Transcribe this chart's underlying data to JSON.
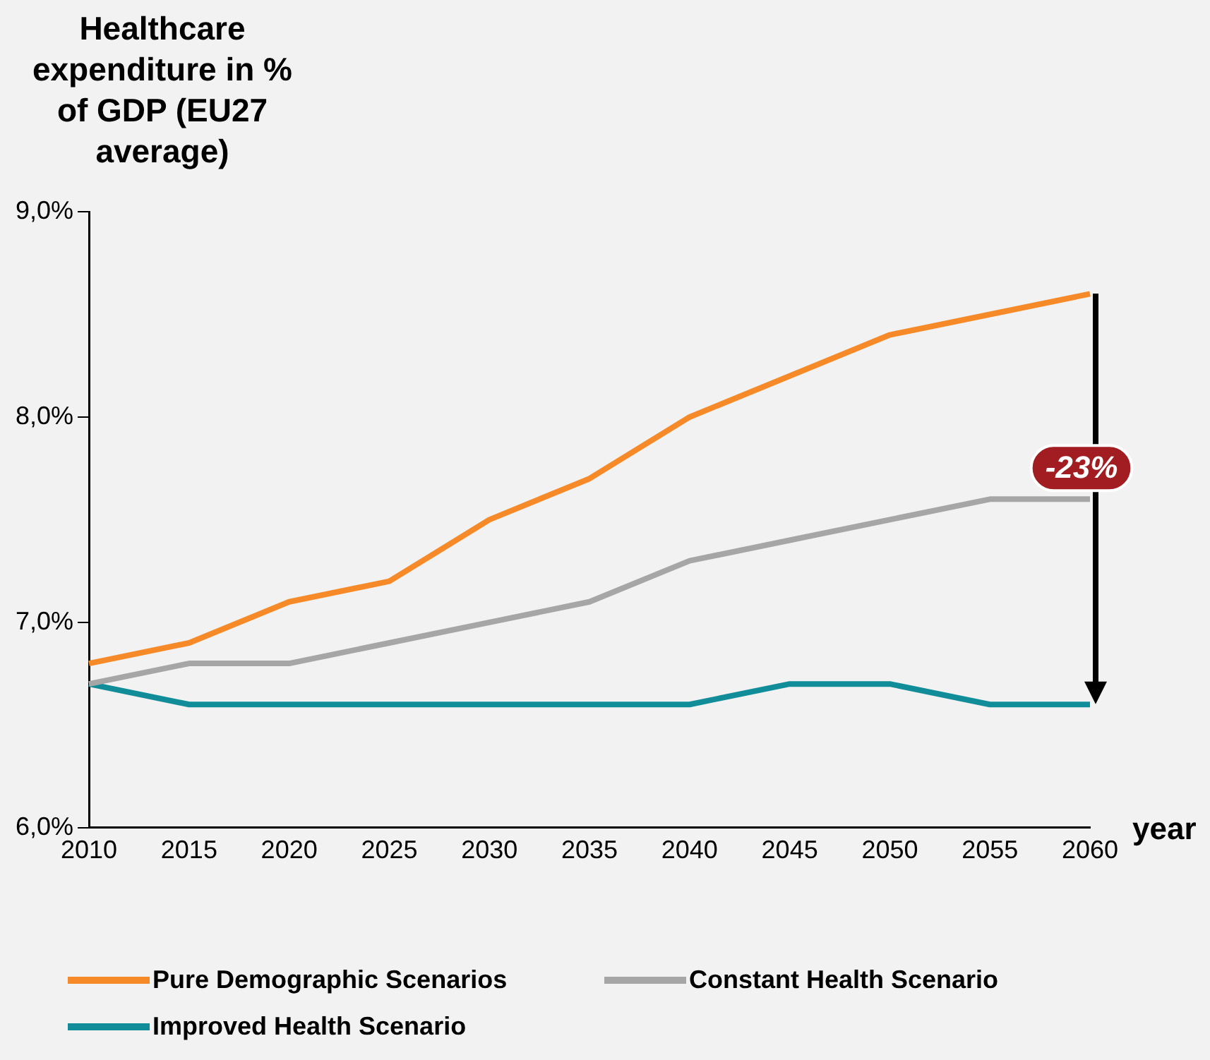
{
  "chart_data": {
    "type": "line",
    "ylabel": "Healthcare expenditure in % of GDP (EU27 average)",
    "xlabel": "year",
    "categories": [
      "2010",
      "2015",
      "2020",
      "2025",
      "2030",
      "2035",
      "2040",
      "2045",
      "2050",
      "2055",
      "2060"
    ],
    "series": [
      {
        "name": "Pure Demographic Scenarios",
        "color": "#f78a28",
        "values": [
          6.8,
          6.9,
          7.1,
          7.2,
          7.5,
          7.7,
          8.0,
          8.2,
          8.4,
          8.5,
          8.6
        ]
      },
      {
        "name": "Constant Health Scenario",
        "color": "#a6a6a6",
        "values": [
          6.7,
          6.8,
          6.8,
          6.9,
          7.0,
          7.1,
          7.3,
          7.4,
          7.5,
          7.6,
          7.6
        ]
      },
      {
        "name": "Improved Health Scenario",
        "color": "#108d99",
        "values": [
          6.7,
          6.6,
          6.6,
          6.6,
          6.6,
          6.6,
          6.6,
          6.7,
          6.7,
          6.6,
          6.6
        ]
      }
    ],
    "ylim": [
      6,
      9
    ],
    "yticks": [
      {
        "value": 6,
        "label": "6,0%"
      },
      {
        "value": 7,
        "label": "7,0%"
      },
      {
        "value": 8,
        "label": "8,0%"
      },
      {
        "value": 9,
        "label": "9,0%"
      }
    ],
    "annotations": [
      {
        "text": "-23%",
        "x": "2060",
        "y": 7.6
      }
    ],
    "grid": false,
    "legend": "bottom",
    "marker": "none",
    "line_style": "solid"
  }
}
